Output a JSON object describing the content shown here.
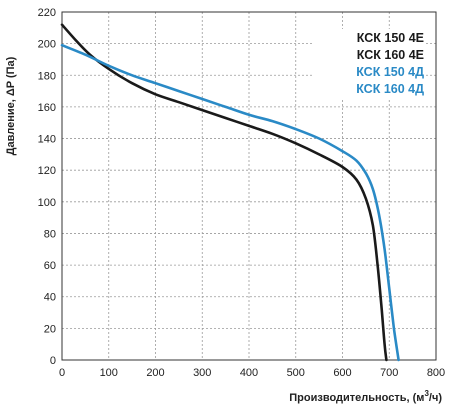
{
  "chart_data": {
    "type": "line",
    "title": "",
    "xlabel": "Производительность, (м",
    "xlabel_sup": "3",
    "xlabel_tail": "/ч)",
    "ylabel": "Давление, ΔP (Па)",
    "xlim": [
      0,
      800
    ],
    "ylim": [
      0,
      220
    ],
    "xticks": [
      0,
      100,
      200,
      300,
      400,
      500,
      600,
      700,
      800
    ],
    "yticks": [
      0,
      20,
      40,
      60,
      80,
      100,
      120,
      140,
      160,
      180,
      200,
      220
    ],
    "grid": true,
    "legend_position": "top-right",
    "legend": [
      {
        "label": "КСК 150 4Е",
        "color": "#1a1a1a"
      },
      {
        "label": "КСК 160 4Е",
        "color": "#1a1a1a"
      },
      {
        "label": "КСК 150 4Д",
        "color": "#2a8ac6"
      },
      {
        "label": "КСК 160 4Д",
        "color": "#2a8ac6"
      }
    ],
    "series": [
      {
        "color": "#1a1a1a",
        "points": [
          [
            0,
            212
          ],
          [
            30,
            202
          ],
          [
            60,
            193
          ],
          [
            100,
            184
          ],
          [
            150,
            175
          ],
          [
            200,
            168
          ],
          [
            250,
            163
          ],
          [
            300,
            158
          ],
          [
            350,
            153
          ],
          [
            400,
            148
          ],
          [
            450,
            143
          ],
          [
            500,
            137
          ],
          [
            550,
            130
          ],
          [
            600,
            122
          ],
          [
            630,
            114
          ],
          [
            650,
            102
          ],
          [
            665,
            85
          ],
          [
            675,
            60
          ],
          [
            683,
            35
          ],
          [
            690,
            10
          ],
          [
            694,
            0
          ]
        ]
      },
      {
        "color": "#2a8ac6",
        "points": [
          [
            0,
            199
          ],
          [
            50,
            193
          ],
          [
            100,
            186
          ],
          [
            150,
            180
          ],
          [
            200,
            175
          ],
          [
            250,
            170
          ],
          [
            300,
            165
          ],
          [
            350,
            160
          ],
          [
            400,
            155
          ],
          [
            450,
            151
          ],
          [
            500,
            146
          ],
          [
            550,
            140
          ],
          [
            600,
            132
          ],
          [
            630,
            126
          ],
          [
            650,
            118
          ],
          [
            665,
            108
          ],
          [
            678,
            92
          ],
          [
            690,
            70
          ],
          [
            700,
            45
          ],
          [
            710,
            20
          ],
          [
            720,
            0
          ]
        ]
      }
    ]
  }
}
